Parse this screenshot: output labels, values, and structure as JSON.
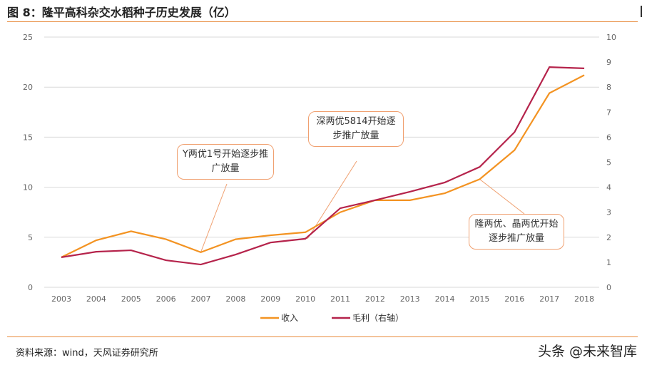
{
  "title": "图 8：隆平高科杂交水稻种子历史发展（亿）",
  "source": "资料来源：wind，天风证券研究所",
  "watermark": "头条 @未来智库",
  "chart_data": {
    "type": "line",
    "categories": [
      "2003",
      "2004",
      "2005",
      "2006",
      "2007",
      "2008",
      "2009",
      "2010",
      "2011",
      "2012",
      "2013",
      "2014",
      "2015",
      "2016",
      "2017",
      "2018"
    ],
    "y_left": {
      "range": [
        0,
        25
      ],
      "ticks": [
        "0",
        "5",
        "10",
        "15",
        "20",
        "25"
      ]
    },
    "y_right": {
      "range": [
        0,
        10
      ],
      "ticks": [
        "0",
        "1",
        "2",
        "3",
        "4",
        "5",
        "6",
        "7",
        "8",
        "9",
        "10"
      ]
    },
    "grid": true,
    "legend_position": "bottom",
    "series": [
      {
        "name": "收入",
        "axis": "left",
        "color": "#f39322",
        "values": [
          3.0,
          4.7,
          5.6,
          4.8,
          3.5,
          4.8,
          5.2,
          5.5,
          7.5,
          8.7,
          8.7,
          9.4,
          10.8,
          13.7,
          19.4,
          21.2
        ]
      },
      {
        "name": "毛利（右轴）",
        "axis": "right",
        "color": "#b5234b",
        "values": [
          1.2,
          1.42,
          1.48,
          1.08,
          0.91,
          1.31,
          1.79,
          1.94,
          3.16,
          3.48,
          3.82,
          4.19,
          4.81,
          6.2,
          8.8,
          8.75
        ]
      }
    ],
    "annotations": [
      {
        "text": "Y两优1号开始逐步推广放量",
        "year": "2007"
      },
      {
        "text": "深两优5814开始逐步推广放量",
        "year": "2010"
      },
      {
        "text": "隆两优、晶两优开始逐步推广放量",
        "year": "2015"
      }
    ]
  }
}
